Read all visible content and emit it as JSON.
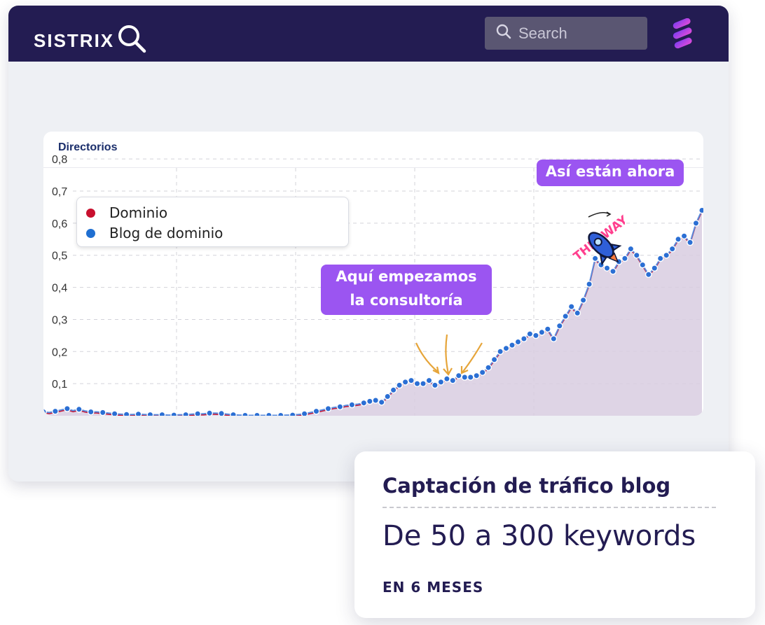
{
  "header": {
    "logo_text": "SISTRIX",
    "search_placeholder": "Search"
  },
  "chart_card": {
    "title": "Directorios"
  },
  "legend": [
    {
      "label": "Dominio",
      "color": "#c8102e"
    },
    {
      "label": "Blog de dominio",
      "color": "#1f6fd1"
    }
  ],
  "callouts": {
    "now": "Así están ahora",
    "start_line1": "Aquí empezamos",
    "start_line2": "la consultoría"
  },
  "sticker": {
    "text": "THIS WAY"
  },
  "stat": {
    "title": "Captación de tráfico blog",
    "value": "De 50 a 300 keywords",
    "subtitle": "EN 6 MESES"
  },
  "colors": {
    "header_bg": "#231c52",
    "accent_purple": "#9b55f1",
    "series_blog": "#1f6fd1",
    "series_domain": "#c8102e",
    "area_fill": "#d8cde0"
  },
  "chart_data": {
    "type": "line",
    "title": "Directorios",
    "xlabel": "",
    "ylabel": "",
    "ylim": [
      0,
      0.82
    ],
    "yticks": [
      "0,1",
      "0,2",
      "0,3",
      "0,4",
      "0,5",
      "0,6",
      "0,7",
      "0,8"
    ],
    "grid": true,
    "legend_position": "top-left",
    "series": [
      {
        "name": "Dominio"
      },
      {
        "name": "Blog de dominio"
      }
    ],
    "x": [
      0,
      1,
      2,
      3,
      4,
      5,
      6,
      7,
      8,
      9,
      10,
      11,
      12,
      13,
      14,
      15,
      16,
      17,
      18,
      19,
      20,
      21,
      22,
      23,
      24,
      25,
      26,
      27,
      28,
      29,
      30,
      31,
      32,
      33,
      34,
      35,
      36,
      37,
      38,
      39,
      40,
      41,
      42,
      43,
      44,
      45,
      46,
      47,
      48,
      49,
      50,
      51,
      52,
      53,
      54,
      55,
      56,
      57,
      58,
      59,
      60,
      61,
      62,
      63,
      64,
      65,
      66,
      67,
      68,
      69,
      70,
      71,
      72,
      73,
      74,
      75,
      76,
      77,
      78,
      79,
      80,
      81,
      82,
      83,
      84,
      85,
      86,
      87,
      88,
      89,
      90,
      91,
      92,
      93,
      94,
      95,
      96,
      97,
      98,
      99,
      100,
      101,
      102,
      103,
      104,
      105,
      106,
      107,
      108,
      109,
      110,
      111
    ],
    "values": [
      0.012,
      0.01,
      0.014,
      0.018,
      0.022,
      0.016,
      0.02,
      0.015,
      0.012,
      0.012,
      0.01,
      0.008,
      0.006,
      0.005,
      0.004,
      0.004,
      0.005,
      0.004,
      0.003,
      0.003,
      0.003,
      0.002,
      0.002,
      0.003,
      0.003,
      0.005,
      0.006,
      0.006,
      0.008,
      0.008,
      0.007,
      0.005,
      0.003,
      0.002,
      0.001,
      0.001,
      0.001,
      0.001,
      0.001,
      0.001,
      0.001,
      0.002,
      0.002,
      0.004,
      0.006,
      0.01,
      0.014,
      0.018,
      0.022,
      0.026,
      0.028,
      0.032,
      0.034,
      0.036,
      0.04,
      0.045,
      0.048,
      0.042,
      0.06,
      0.08,
      0.095,
      0.105,
      0.11,
      0.1,
      0.1,
      0.11,
      0.095,
      0.105,
      0.115,
      0.11,
      0.125,
      0.12,
      0.12,
      0.125,
      0.135,
      0.15,
      0.175,
      0.2,
      0.21,
      0.22,
      0.23,
      0.24,
      0.255,
      0.25,
      0.26,
      0.27,
      0.24,
      0.28,
      0.31,
      0.34,
      0.32,
      0.36,
      0.41,
      0.49,
      0.47,
      0.46,
      0.45,
      0.48,
      0.49,
      0.52,
      0.5,
      0.47,
      0.44,
      0.46,
      0.49,
      0.5,
      0.52,
      0.55,
      0.56,
      0.54,
      0.6,
      0.64
    ]
  }
}
